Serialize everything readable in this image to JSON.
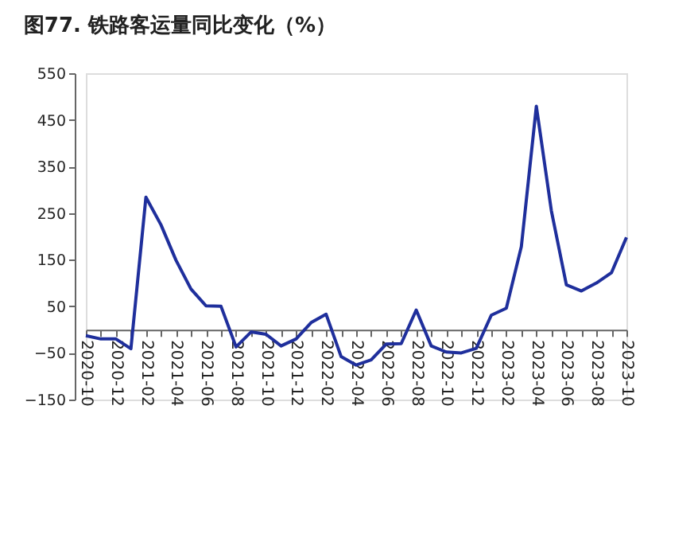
{
  "chart_data": {
    "type": "line",
    "title": "图77. 铁路客运量同比变化（%）",
    "categories": [
      "2020-10",
      null,
      "2020-12",
      null,
      "2021-02",
      null,
      "2021-04",
      null,
      "2021-06",
      null,
      "2021-08",
      null,
      "2021-10",
      null,
      "2021-12",
      null,
      "2022-02",
      null,
      "2022-04",
      null,
      "2022-06",
      null,
      "2022-08",
      null,
      "2022-10",
      null,
      "2022-12",
      null,
      "2023-02",
      null,
      "2023-04",
      null,
      "2023-06",
      null,
      "2023-08",
      null,
      "2023-10"
    ],
    "series": [
      {
        "color": "#1f2f9c",
        "values": [
          -13,
          -20,
          -20,
          -41,
          284,
          225,
          149,
          87,
          51,
          50,
          -37,
          -5,
          -10,
          -35,
          -20,
          15,
          33,
          -58,
          -76,
          -65,
          -31,
          -30,
          42,
          -35,
          -48,
          -50,
          -40,
          31,
          46,
          178,
          479,
          255,
          96,
          83,
          100,
          122,
          198
        ]
      }
    ],
    "ylim": [
      -150,
      550
    ],
    "yticks": [
      -150,
      -50,
      50,
      150,
      250,
      350,
      450,
      550
    ],
    "grid": false,
    "marker": "none",
    "line_style": "solid"
  }
}
